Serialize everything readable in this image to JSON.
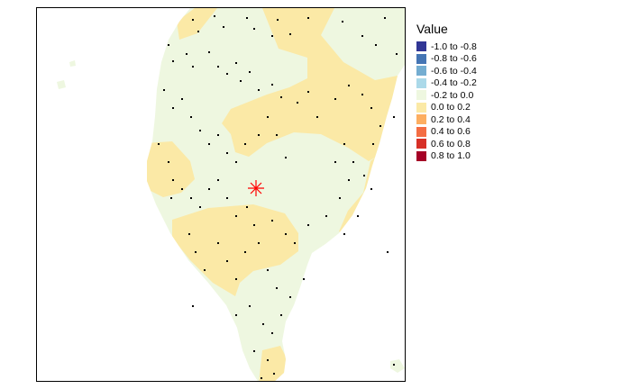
{
  "legend": {
    "title": "Value",
    "items": [
      {
        "label": "-1.0 to -0.8",
        "color": "#313695"
      },
      {
        "label": "-0.8 to -0.6",
        "color": "#4575b4"
      },
      {
        "label": "-0.6 to -0.4",
        "color": "#74add1"
      },
      {
        "label": "-0.4 to -0.2",
        "color": "#abd9e9"
      },
      {
        "label": "-0.2 to 0.0",
        "color": "#eef7e0"
      },
      {
        "label": "0.0 to 0.2",
        "color": "#fbe9a6"
      },
      {
        "label": "0.2 to 0.4",
        "color": "#fdae61"
      },
      {
        "label": "0.4 to 0.6",
        "color": "#f46d43"
      },
      {
        "label": "0.6 to 0.8",
        "color": "#d73027"
      },
      {
        "label": "0.8 to 1.0",
        "color": "#a50026"
      }
    ]
  },
  "map": {
    "marker_icon": "asterisk-marker",
    "marker_color": "#ff0000",
    "station_color": "#000000"
  }
}
